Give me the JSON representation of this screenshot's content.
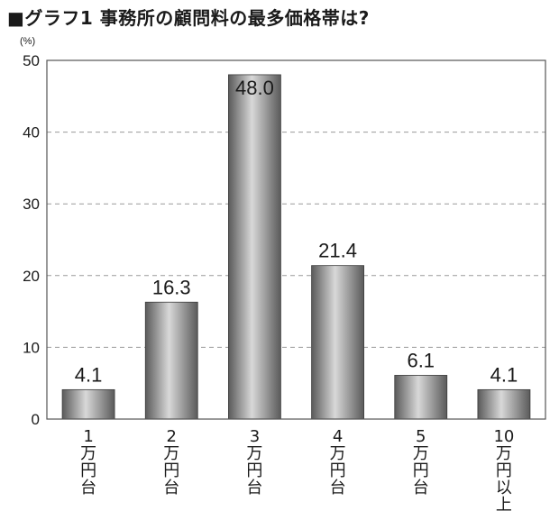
{
  "chart_data": {
    "type": "bar",
    "title": "■グラフ1 事務所の顧問料の最多価格帯は?",
    "ylabel": "(%)",
    "xlabel": "",
    "ylim": [
      0,
      50
    ],
    "yticks": [
      "0",
      "10",
      "20",
      "30",
      "40",
      "50"
    ],
    "grid": true,
    "categories": [
      "1万円台",
      "2万円台",
      "3万円台",
      "4万円台",
      "5万円台",
      "10万円以上"
    ],
    "category_lines": [
      [
        "1",
        "万",
        "円",
        "台"
      ],
      [
        "2",
        "万",
        "円",
        "台"
      ],
      [
        "3",
        "万",
        "円",
        "台"
      ],
      [
        "4",
        "万",
        "円",
        "台"
      ],
      [
        "5",
        "万",
        "円",
        "台"
      ],
      [
        "10",
        "万",
        "円",
        "以",
        "上"
      ]
    ],
    "values": [
      4.1,
      16.3,
      48.0,
      21.4,
      6.1,
      4.1
    ],
    "value_labels": [
      "4.1",
      "16.3",
      "48.0",
      "21.4",
      "6.1",
      "4.1"
    ],
    "colors": {
      "bar_dark": "#5a5a5a",
      "bar_light": "#d8d8d8",
      "grid": "#9a9a9a",
      "axis": "#555555"
    }
  }
}
